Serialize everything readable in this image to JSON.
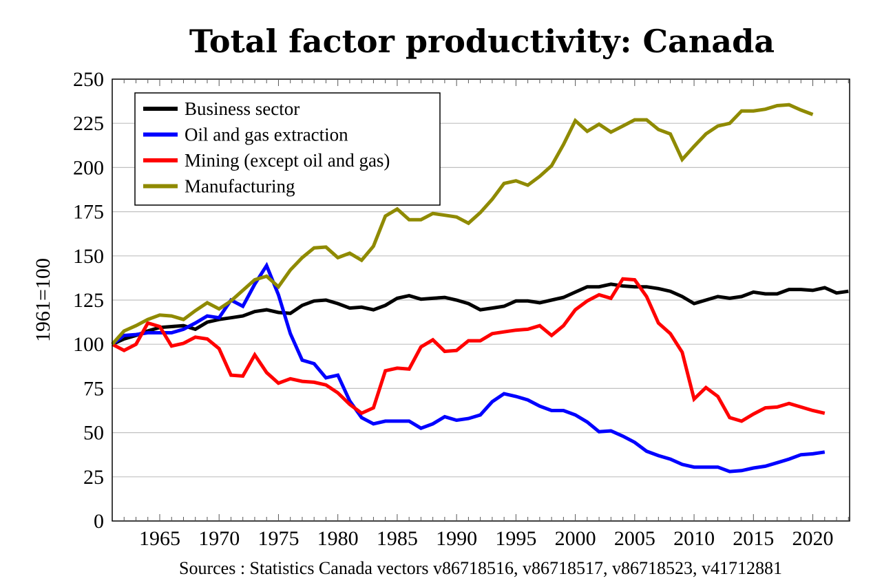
{
  "chart_data": {
    "type": "line",
    "title": "Total factor productivity: Canada",
    "xlabel": "",
    "ylabel": "1961=100",
    "source": "Sources : Statistics Canada vectors v86718516, v86718517, v86718523, v41712881",
    "xlim": [
      1961,
      2023
    ],
    "ylim": [
      0,
      250
    ],
    "x_ticks": [
      1965,
      1970,
      1975,
      1980,
      1985,
      1990,
      1995,
      2000,
      2005,
      2010,
      2015,
      2020
    ],
    "x_tick_labels": [
      "1965",
      "1970",
      "1975",
      "1980",
      "1985",
      "1990",
      "1995",
      "2000",
      "2005",
      "2010",
      "2015",
      "2020"
    ],
    "x_minor_step": 1,
    "y_ticks": [
      0,
      25,
      50,
      75,
      100,
      125,
      150,
      175,
      200,
      225,
      250
    ],
    "y_tick_labels": [
      "0",
      "25",
      "50",
      "75",
      "100",
      "125",
      "150",
      "175",
      "200",
      "225",
      "250"
    ],
    "grid": "horizontal",
    "legend_position": "top-left",
    "series": [
      {
        "name": "Business sector",
        "color": "#000000",
        "x_start": 1961,
        "values": [
          100,
          103,
          105,
          107.5,
          109.5,
          110,
          110.5,
          108.5,
          112.5,
          114,
          115,
          116,
          118.5,
          119.5,
          118,
          117.5,
          122,
          124.5,
          125,
          123,
          120.5,
          121,
          119.5,
          122,
          126,
          127.5,
          125.5,
          126,
          126.5,
          125,
          123,
          119.5,
          120.5,
          121.5,
          124.5,
          124.5,
          123.5,
          125,
          126.5,
          129.5,
          132.5,
          132.5,
          134,
          133,
          132.5,
          132.5,
          131.5,
          130,
          127,
          123,
          125,
          127,
          126,
          127,
          129.5,
          128.5,
          128.5,
          131,
          131,
          130.5,
          132,
          129,
          130
        ]
      },
      {
        "name": "Oil and gas extraction",
        "color": "#0000ff",
        "x_start": 1961,
        "values": [
          100,
          105,
          105.5,
          106.5,
          106.5,
          106.5,
          108.5,
          112,
          116,
          115,
          125,
          121.5,
          134,
          144.5,
          128,
          106,
          91,
          89,
          81,
          82.5,
          68,
          58.5,
          55,
          56.5,
          56.5,
          56.5,
          52.5,
          55,
          59,
          57,
          58,
          60,
          67.5,
          72,
          70.5,
          68.5,
          65,
          62.5,
          62.5,
          60,
          56,
          50.5,
          51,
          48,
          44.5,
          39.5,
          37,
          35,
          32,
          30.5,
          30.5,
          30.5,
          28,
          28.5,
          30,
          31,
          33,
          35,
          37.5,
          38,
          39
        ]
      },
      {
        "name": "Mining (except oil and gas)",
        "color": "#ff0000",
        "x_start": 1961,
        "values": [
          100,
          96.5,
          100,
          112,
          110,
          99,
          100.5,
          104,
          103,
          97.5,
          82.5,
          82,
          94,
          84,
          78,
          80.5,
          79,
          78.5,
          77,
          72.5,
          66,
          61,
          64,
          85,
          86.5,
          86,
          98.5,
          102.5,
          96,
          96.5,
          102,
          102,
          106,
          107,
          108,
          108.5,
          110.5,
          105,
          110.5,
          119.5,
          124.5,
          128,
          126,
          137,
          136.5,
          127,
          112,
          106,
          95.5,
          69,
          75.5,
          70.5,
          58.5,
          56.5,
          60.5,
          64,
          64.5,
          66.5,
          64.5,
          62.5,
          61
        ]
      },
      {
        "name": "Manufacturing",
        "color": "#8f8a00",
        "x_start": 1961,
        "values": [
          100,
          107.5,
          110.5,
          114,
          116.5,
          116,
          114,
          119,
          123.5,
          120,
          124.5,
          130.5,
          136.5,
          138.5,
          132.5,
          142,
          149,
          154.5,
          155,
          149,
          151.5,
          147.5,
          155.5,
          172.5,
          176.5,
          170.5,
          170.5,
          174,
          173,
          172,
          168.5,
          174.5,
          182,
          191,
          192.5,
          190,
          195,
          201,
          213,
          226.5,
          220.5,
          224.5,
          220,
          223.5,
          227,
          227,
          221.5,
          219,
          204.5,
          212,
          219,
          223.5,
          225,
          232,
          232,
          233,
          235,
          235.5,
          232.5,
          230
        ]
      }
    ]
  }
}
